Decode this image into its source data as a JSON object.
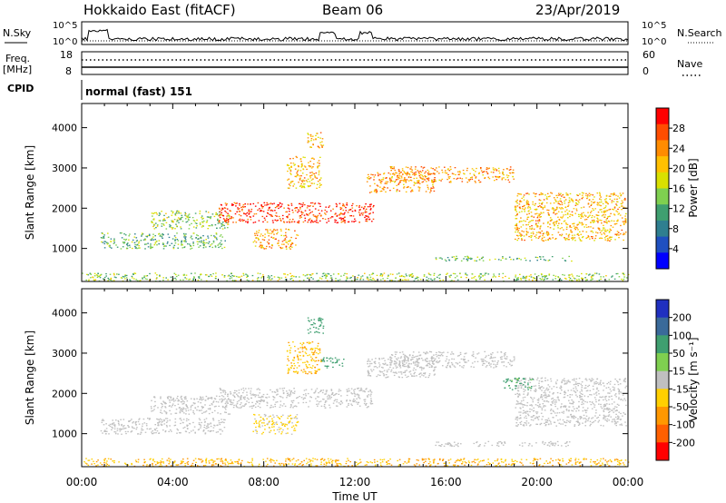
{
  "header": {
    "station": "Hokkaido East (fitACF)",
    "beam": "Beam 06",
    "date": "23/Apr/2019"
  },
  "strip": {
    "nsky_label": "N.Sky",
    "nsearch_label": "N.Search",
    "nsky_ticks": [
      "10^5",
      "10^0"
    ],
    "nsearch_ticks": [
      "10^5",
      "10^0"
    ],
    "freq_label_line1": "Freq.",
    "freq_label_line2": "[MHz]",
    "freq_ticks": [
      "18",
      "8"
    ],
    "nave_label": "Nave",
    "nave_ticks": [
      "60",
      "0"
    ],
    "cpid_label": "CPID",
    "cpid_value": "normal (fast) 151"
  },
  "axes": {
    "ylabel": "Slant Range [km]",
    "xlabel": "Time UT",
    "x_ticks": [
      "00:00",
      "04:00",
      "08:00",
      "12:00",
      "16:00",
      "20:00",
      "00:00"
    ],
    "y_ticks": [
      "1000",
      "2000",
      "3000",
      "4000"
    ]
  },
  "colorbars": {
    "power": {
      "label": "Power [dB]",
      "ticks": [
        "28",
        "24",
        "20",
        "16",
        "12",
        "8",
        "4"
      ],
      "colors": [
        "#ff0000",
        "#ff4d00",
        "#ff8c00",
        "#ffc000",
        "#d9e000",
        "#7fd050",
        "#3f9f70",
        "#2f7f90",
        "#1f50c0",
        "#0000ff"
      ]
    },
    "velocity": {
      "label": "Velocity [m s⁻¹]",
      "ticks": [
        "200",
        "100",
        "50",
        "15",
        "-15",
        "-50",
        "-100",
        "-200"
      ],
      "colors": [
        "#2030c0",
        "#3a6a9a",
        "#3f9f70",
        "#7fd050",
        "#c0c0c0",
        "#ffd000",
        "#ff9800",
        "#ff6000",
        "#ff0000"
      ]
    }
  },
  "chart_data": [
    {
      "type": "heatmap",
      "panel": "power",
      "xlabel": "Time UT",
      "ylabel": "Slant Range [km]",
      "xlim": [
        0,
        24
      ],
      "ylim": [
        180,
        4600
      ],
      "clabel": "Power [dB]",
      "clim": [
        0,
        30
      ],
      "bands": [
        {
          "t0": 0.8,
          "t1": 6.3,
          "r0": 1000,
          "r1": 1400,
          "level": 12
        },
        {
          "t0": 3.0,
          "t1": 6.5,
          "r0": 1500,
          "r1": 1950,
          "level": 14
        },
        {
          "t0": 6.0,
          "t1": 12.8,
          "r0": 1650,
          "r1": 2150,
          "level": 27
        },
        {
          "t0": 7.5,
          "t1": 9.5,
          "r0": 1000,
          "r1": 1500,
          "level": 22
        },
        {
          "t0": 9.0,
          "t1": 10.5,
          "r0": 2500,
          "r1": 3300,
          "level": 20
        },
        {
          "t0": 9.9,
          "t1": 10.6,
          "r0": 3500,
          "r1": 3900,
          "level": 20
        },
        {
          "t0": 12.5,
          "t1": 15.5,
          "r0": 2400,
          "r1": 2900,
          "level": 22
        },
        {
          "t0": 13.5,
          "t1": 19.0,
          "r0": 2650,
          "r1": 3050,
          "level": 22
        },
        {
          "t0": 19.0,
          "t1": 23.9,
          "r0": 1200,
          "r1": 2400,
          "level": 20
        },
        {
          "t0": 15.5,
          "t1": 21.5,
          "r0": 700,
          "r1": 820,
          "level": 12
        },
        {
          "t0": 0.0,
          "t1": 24.0,
          "r0": 200,
          "r1": 400,
          "level": 14
        }
      ]
    },
    {
      "type": "heatmap",
      "panel": "velocity",
      "xlabel": "Time UT",
      "ylabel": "Slant Range [km]",
      "xlim": [
        0,
        24
      ],
      "ylim": [
        180,
        4600
      ],
      "clabel": "Velocity [m s⁻¹]",
      "clim": [
        -200,
        200
      ],
      "bands": [
        {
          "t0": 0.8,
          "t1": 6.3,
          "r0": 1000,
          "r1": 1400,
          "level": 0
        },
        {
          "t0": 3.0,
          "t1": 6.5,
          "r0": 1500,
          "r1": 1950,
          "level": 0
        },
        {
          "t0": 6.0,
          "t1": 12.8,
          "r0": 1650,
          "r1": 2150,
          "level": 0
        },
        {
          "t0": 7.5,
          "t1": 9.5,
          "r0": 1000,
          "r1": 1500,
          "level": -20
        },
        {
          "t0": 9.0,
          "t1": 10.5,
          "r0": 2500,
          "r1": 3300,
          "level": -30
        },
        {
          "t0": 9.9,
          "t1": 10.6,
          "r0": 3500,
          "r1": 3900,
          "level": 60
        },
        {
          "t0": 10.5,
          "t1": 11.5,
          "r0": 2650,
          "r1": 2900,
          "level": 60
        },
        {
          "t0": 12.5,
          "t1": 15.5,
          "r0": 2400,
          "r1": 2900,
          "level": 0
        },
        {
          "t0": 13.5,
          "t1": 19.0,
          "r0": 2650,
          "r1": 3050,
          "level": 0
        },
        {
          "t0": 19.0,
          "t1": 23.9,
          "r0": 1200,
          "r1": 2400,
          "level": 0
        },
        {
          "t0": 18.5,
          "t1": 19.8,
          "r0": 2100,
          "r1": 2400,
          "level": 40
        },
        {
          "t0": 15.5,
          "t1": 21.5,
          "r0": 700,
          "r1": 820,
          "level": 0
        },
        {
          "t0": 0.0,
          "t1": 24.0,
          "r0": 200,
          "r1": 400,
          "level": -30
        }
      ]
    }
  ]
}
